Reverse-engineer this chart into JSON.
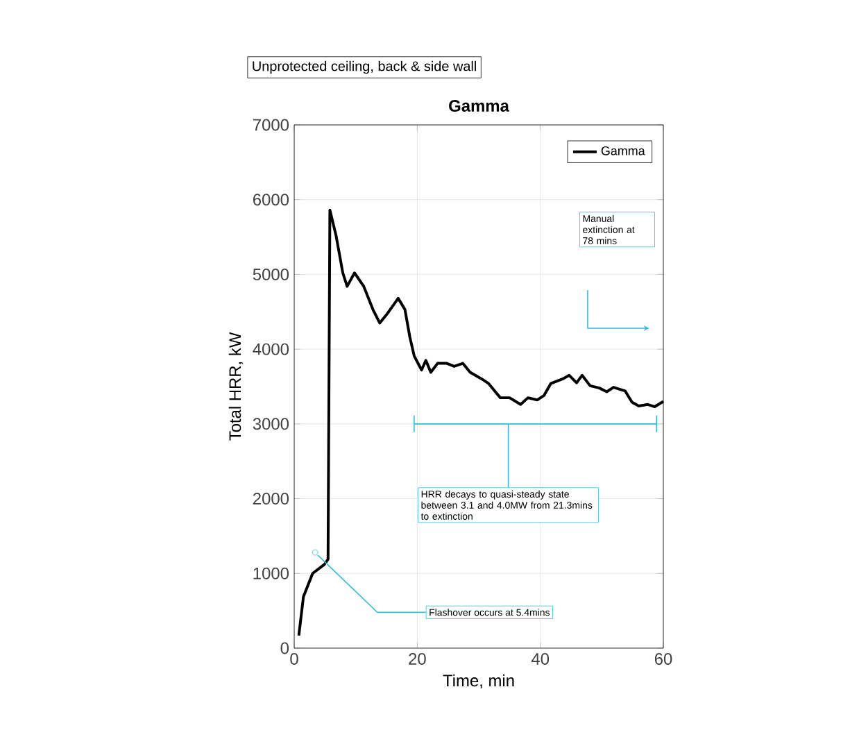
{
  "chart_data": {
    "type": "line",
    "title": "Gamma",
    "xlabel": "Time, min",
    "ylabel": "Total HRR, kW",
    "annotations": [
      "Unprotected ceiling, back & side wall",
      "Manual extinction at 78 mins",
      {
        "text": "Flashover occurs at 5.4mins",
        "x": 3.4,
        "y": 1280
      },
      {
        "text": "HRR decays to quasi-steady state between 3.1 and 4.0MW from 21.3mins to extinction",
        "x": 34.8,
        "y": 3000
      }
    ],
    "x": [
      0.75,
      1.5,
      3.0,
      4.9,
      5.5,
      5.8,
      6.8,
      7.9,
      8.6,
      9.8,
      11.3,
      12.8,
      13.9,
      15.0,
      16.9,
      18.0,
      18.8,
      19.5,
      20.7,
      21.4,
      22.2,
      23.3,
      24.8,
      26.0,
      27.4,
      28.6,
      30.5,
      31.6,
      33.5,
      35.0,
      36.8,
      38.0,
      39.5,
      40.6,
      41.7,
      43.6,
      44.7,
      45.9,
      46.8,
      48.1,
      49.6,
      50.8,
      51.9,
      53.8,
      54.9,
      56.0,
      57.5,
      58.6,
      60
    ],
    "series": [
      {
        "name": "Gamma",
        "color": "#000000",
        "values": [
          170,
          690,
          1000,
          1120,
          1190,
          5860,
          5520,
          5020,
          4840,
          5020,
          4840,
          4530,
          4350,
          4460,
          4680,
          4530,
          4160,
          3910,
          3720,
          3850,
          3690,
          3810,
          3810,
          3770,
          3810,
          3690,
          3600,
          3540,
          3350,
          3350,
          3260,
          3350,
          3320,
          3380,
          3540,
          3600,
          3650,
          3550,
          3650,
          3510,
          3480,
          3430,
          3490,
          3440,
          3290,
          3240,
          3260,
          3230,
          3300
        ]
      },
      {
        "type": "line",
        "color": "#33bbdd",
        "x": [
          19.5,
          58.9
        ],
        "values": [
          3000,
          3000
        ]
      }
    ],
    "xlim": [
      0,
      60
    ],
    "xticks": [
      0,
      20,
      40,
      60
    ],
    "ylim": [
      0,
      7000
    ],
    "yticks": [
      0,
      1000,
      2000,
      3000,
      4000,
      5000,
      6000,
      7000
    ],
    "grid": true,
    "legend": "top right",
    "line_style": "solid",
    "marker": "none"
  }
}
